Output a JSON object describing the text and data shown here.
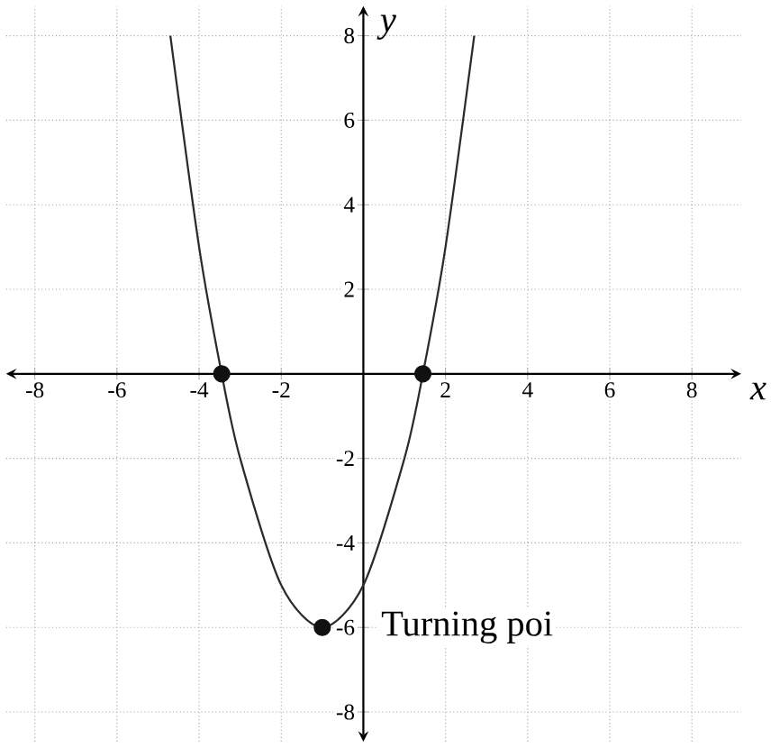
{
  "chart_data": {
    "type": "line",
    "xlabel": "x",
    "ylabel": "y",
    "xlim": [
      -8.7,
      9.2
    ],
    "ylim": [
      -8.7,
      8.7
    ],
    "xticks": [
      -8,
      -6,
      -4,
      -2,
      2,
      4,
      6,
      8
    ],
    "yticks": [
      -8,
      -6,
      -4,
      -2,
      2,
      4,
      6,
      8
    ],
    "grid": true,
    "series": [
      {
        "type": "line",
        "color": "#2b2b2b",
        "line_style": "solid",
        "marker": "none",
        "x": [
          -4.7,
          -4,
          -3.45,
          -3,
          -2,
          -1,
          0,
          1,
          1.45,
          2,
          2.7
        ],
        "values": [
          8,
          3,
          0,
          -2,
          -5,
          -6,
          -5,
          -2,
          0,
          3,
          8
        ]
      },
      {
        "type": "scatter",
        "color": "#111111",
        "marker": "circle",
        "x": [
          -3.45,
          -1,
          1.45
        ],
        "values": [
          0,
          -6,
          0
        ]
      }
    ],
    "annotations": [
      {
        "text": "Turning poi",
        "x": -1,
        "y": -6
      }
    ]
  }
}
